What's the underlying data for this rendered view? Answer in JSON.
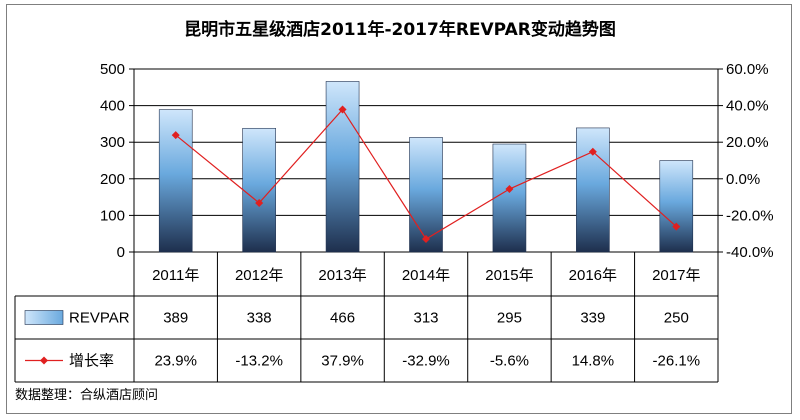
{
  "source_note": "数据整理：合纵酒店顾问",
  "colors": {
    "bar_top": "#cfe6fb",
    "bar_mid": "#6aa9de",
    "bar_bottom": "#1e2f4d",
    "line": "#e02020",
    "grid": "#000000"
  },
  "chart_data": {
    "type": "bar",
    "title": "昆明市五星级酒店2011年-2017年REVPAR变动趋势图",
    "categories": [
      "2011年",
      "2012年",
      "2013年",
      "2014年",
      "2015年",
      "2016年",
      "2017年"
    ],
    "series": [
      {
        "name": "REVPAR",
        "type": "bar",
        "axis": "left",
        "values": [
          389,
          338,
          466,
          313,
          295,
          339,
          250
        ],
        "labels": [
          "389",
          "338",
          "466",
          "313",
          "295",
          "339",
          "250"
        ]
      },
      {
        "name": "增长率",
        "type": "line",
        "axis": "right",
        "values": [
          23.9,
          -13.2,
          37.9,
          -32.9,
          -5.6,
          14.8,
          -26.1
        ],
        "labels": [
          "23.9%",
          "-13.2%",
          "37.9%",
          "-32.9%",
          "-5.6%",
          "14.8%",
          "-26.1%"
        ]
      }
    ],
    "y_left": {
      "min": 0,
      "max": 500,
      "ticks": [
        "0",
        "100",
        "200",
        "300",
        "400",
        "500"
      ]
    },
    "y_right": {
      "min": -40,
      "max": 60,
      "ticks": [
        "-40.0%",
        "-20.0%",
        "0.0%",
        "20.0%",
        "40.0%",
        "60.0%"
      ]
    },
    "grid": true,
    "legend_placement": "data-table"
  }
}
